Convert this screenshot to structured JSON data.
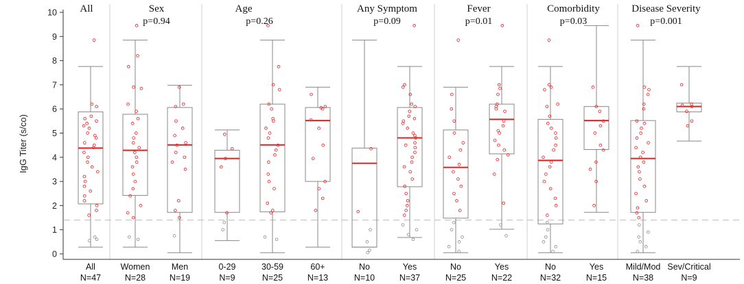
{
  "chart_data": {
    "type": "box",
    "ylabel": "IgG Titer (s/co)",
    "ylim": [
      0,
      10
    ],
    "yticks": [
      "0",
      "1",
      "2",
      "3",
      "4",
      "5",
      "6",
      "7",
      "8",
      "9",
      "10"
    ],
    "reference_line": 1.4,
    "colors": {
      "median": "#e0201e",
      "point_above": "#ee3333",
      "point_below": "#999999",
      "box": "#888888",
      "ref": "#bbbbbb",
      "divider": "#cfcfcf"
    },
    "panels": [
      {
        "title": "All",
        "pvalue": ""
      },
      {
        "title": "Sex",
        "pvalue": "p=0.94"
      },
      {
        "title": "Age",
        "pvalue": "p=0.26"
      },
      {
        "title": "Any Symptom",
        "pvalue": "p=0.09"
      },
      {
        "title": "Fever",
        "pvalue": "p=0.01"
      },
      {
        "title": "Comorbidity",
        "pvalue": "p=0.03"
      },
      {
        "title": "Disease Severity",
        "pvalue": "p=0.001"
      }
    ],
    "groups": [
      {
        "panel": 0,
        "label": "All",
        "n": "N=47",
        "whisker_low": 0.28,
        "q1": 2.07,
        "median": 4.38,
        "q3": 5.88,
        "whisker_high": 7.76,
        "points": [
          8.85,
          6.2,
          6.1,
          5.7,
          5.6,
          5.5,
          5.4,
          5.3,
          5.2,
          5.0,
          4.9,
          4.8,
          4.6,
          4.5,
          4.4,
          4.2,
          4.0,
          3.8,
          3.6,
          3.4,
          3.2,
          3.0,
          2.8,
          2.6,
          2.4,
          2.2,
          2.0,
          1.8,
          1.6,
          0.7,
          0.6,
          0.55
        ]
      },
      {
        "panel": 1,
        "label": "Women",
        "n": "N=28",
        "whisker_low": 0.28,
        "q1": 2.42,
        "median": 4.29,
        "q3": 5.78,
        "whisker_high": 8.85,
        "points": [
          9.45,
          8.2,
          7.75,
          6.9,
          6.85,
          6.2,
          5.9,
          5.6,
          5.4,
          5.0,
          4.8,
          4.6,
          4.4,
          4.2,
          4.0,
          3.8,
          3.6,
          3.3,
          3.0,
          2.7,
          2.4,
          2.0,
          1.7,
          1.5,
          0.7,
          0.6
        ]
      },
      {
        "panel": 1,
        "label": "Men",
        "n": "N=19",
        "whisker_low": 0.05,
        "q1": 1.72,
        "median": 4.51,
        "q3": 6.06,
        "whisker_high": 6.98,
        "points": [
          6.9,
          6.2,
          6.1,
          5.5,
          5.2,
          4.9,
          4.6,
          4.5,
          4.2,
          4.0,
          3.8,
          3.5,
          2.2,
          1.8,
          1.5,
          0.75
        ]
      },
      {
        "panel": 2,
        "label": "0-29",
        "n": "N=9",
        "whisker_low": 0.55,
        "q1": 1.72,
        "median": 3.95,
        "q3": 4.29,
        "whisker_high": 5.13,
        "points": [
          4.95,
          4.35,
          3.95,
          3.6,
          1.7,
          1.3,
          1.0
        ]
      },
      {
        "panel": 2,
        "label": "30-59",
        "n": "N=25",
        "whisker_low": 0.05,
        "q1": 1.74,
        "median": 4.51,
        "q3": 6.2,
        "whisker_high": 8.85,
        "points": [
          9.45,
          7.75,
          7.0,
          6.8,
          6.2,
          6.0,
          5.6,
          5.5,
          5.2,
          5.0,
          4.8,
          4.5,
          4.3,
          4.1,
          3.8,
          3.3,
          3.0,
          2.7,
          2.1,
          1.8,
          1.7,
          0.7,
          0.6
        ]
      },
      {
        "panel": 2,
        "label": "60+",
        "n": "N=13",
        "whisker_low": 0.28,
        "q1": 3.0,
        "median": 5.52,
        "q3": 6.06,
        "whisker_high": 6.9,
        "points": [
          6.6,
          6.1,
          6.05,
          6.0,
          5.55,
          5.2,
          4.5,
          3.95,
          3.0,
          2.7,
          2.3,
          1.8
        ]
      },
      {
        "panel": 3,
        "label": "No",
        "n": "N=10",
        "whisker_low": 0.28,
        "q1": 0.28,
        "median": 3.75,
        "q3": 4.38,
        "whisker_high": 8.85,
        "points": [
          4.35,
          1.75,
          1.0,
          0.5,
          0.15,
          0.05
        ]
      },
      {
        "panel": 3,
        "label": "Yes",
        "n": "N=37",
        "whisker_low": 0.68,
        "q1": 2.78,
        "median": 4.8,
        "q3": 6.06,
        "whisker_high": 7.76,
        "points": [
          9.45,
          7.0,
          6.9,
          6.6,
          6.2,
          6.1,
          5.9,
          5.7,
          5.6,
          5.5,
          5.4,
          5.2,
          5.0,
          4.9,
          4.8,
          4.6,
          4.5,
          4.4,
          4.2,
          4.0,
          3.8,
          3.6,
          3.4,
          3.1,
          2.8,
          2.5,
          2.2,
          2.0,
          1.8,
          1.6,
          1.2,
          1.0,
          0.8,
          0.6
        ]
      },
      {
        "panel": 4,
        "label": "No",
        "n": "N=25",
        "whisker_low": 0.05,
        "q1": 1.48,
        "median": 3.58,
        "q3": 5.13,
        "whisker_high": 6.9,
        "points": [
          8.85,
          6.6,
          6.0,
          5.5,
          5.0,
          4.6,
          4.3,
          4.0,
          3.7,
          3.4,
          3.1,
          2.8,
          2.5,
          2.2,
          1.8,
          1.3,
          1.0,
          0.7,
          0.5,
          0.3,
          0.1
        ]
      },
      {
        "panel": 4,
        "label": "Yes",
        "n": "N=22",
        "whisker_low": 1.02,
        "q1": 4.14,
        "median": 5.57,
        "q3": 6.2,
        "whisker_high": 7.76,
        "points": [
          9.45,
          7.0,
          6.85,
          6.6,
          6.2,
          6.1,
          6.0,
          5.9,
          5.5,
          5.3,
          5.1,
          5.0,
          4.7,
          4.5,
          4.3,
          4.1,
          3.9,
          3.3,
          2.1,
          1.2,
          0.75
        ]
      },
      {
        "panel": 5,
        "label": "No",
        "n": "N=32",
        "whisker_low": 0.05,
        "q1": 1.24,
        "median": 3.87,
        "q3": 5.57,
        "whisker_high": 7.76,
        "points": [
          8.85,
          7.0,
          6.9,
          6.8,
          6.2,
          6.1,
          5.7,
          5.4,
          5.2,
          5.0,
          4.8,
          4.5,
          4.3,
          4.0,
          3.8,
          3.6,
          3.3,
          3.0,
          2.7,
          2.3,
          2.0,
          1.6,
          1.3,
          1.0,
          0.7,
          0.5,
          0.3,
          0.1
        ]
      },
      {
        "panel": 5,
        "label": "Yes",
        "n": "N=15",
        "whisker_low": 1.72,
        "q1": 4.32,
        "median": 5.52,
        "q3": 6.1,
        "whisker_high": 9.45,
        "points": [
          6.9,
          6.1,
          5.9,
          5.5,
          5.3,
          5.0,
          4.5,
          4.3,
          3.8,
          3.5,
          3.0,
          2.0
        ]
      },
      {
        "panel": 6,
        "label": "Mild/Mod",
        "n": "N=38",
        "whisker_low": 0.05,
        "q1": 1.72,
        "median": 3.95,
        "q3": 5.52,
        "whisker_high": 8.85,
        "points": [
          9.45,
          6.9,
          6.8,
          6.6,
          6.2,
          6.0,
          5.5,
          5.4,
          5.2,
          5.0,
          4.8,
          4.6,
          4.4,
          4.2,
          4.0,
          3.8,
          3.6,
          3.4,
          3.1,
          2.8,
          2.5,
          2.2,
          1.9,
          1.7,
          1.5,
          1.2,
          0.9,
          0.7,
          0.5,
          0.3,
          0.1
        ]
      },
      {
        "panel": 6,
        "label": "Sev/Critical",
        "n": "N=9",
        "whisker_low": 4.67,
        "q1": 5.88,
        "median": 6.1,
        "q3": 6.24,
        "whisker_high": 7.76,
        "points": [
          7.0,
          6.2,
          6.15,
          6.1,
          5.9,
          5.5,
          5.3
        ]
      }
    ]
  }
}
